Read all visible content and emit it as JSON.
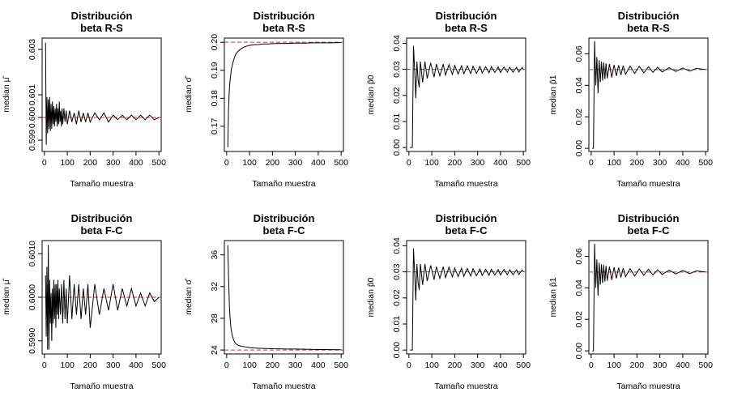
{
  "figure": {
    "background": "#ffffff",
    "line_color": "#000000",
    "reference_color": "#cc3333"
  },
  "chart_data": [
    {
      "type": "line",
      "title_line1": "Distribución",
      "title_line2": "beta R-S",
      "xlabel": "Tamaño muestra",
      "ylabel": "median μ̂",
      "xlim": [
        -10,
        510
      ],
      "ylim": [
        0.5985,
        0.6035
      ],
      "xticks": [
        0,
        100,
        200,
        300,
        400,
        500
      ],
      "xtick_labels": [
        "0",
        "100",
        "200",
        "300",
        "400",
        "500"
      ],
      "yticks": [
        0.599,
        0.6,
        0.601,
        0.603
      ],
      "ytick_labels": [
        "0.599",
        "0.600",
        "0.601",
        "0.603"
      ],
      "reference_line": 0.6,
      "x": [
        5,
        8,
        11,
        14,
        17,
        20,
        23,
        26,
        29,
        32,
        35,
        38,
        41,
        44,
        47,
        50,
        53,
        56,
        59,
        62,
        65,
        68,
        71,
        74,
        77,
        80,
        85,
        90,
        95,
        100,
        110,
        120,
        130,
        140,
        150,
        160,
        170,
        180,
        190,
        200,
        220,
        240,
        260,
        280,
        300,
        320,
        340,
        360,
        380,
        400,
        420,
        440,
        460,
        480,
        500
      ],
      "values": [
        0.6033,
        0.5988,
        0.6009,
        0.5993,
        0.6008,
        0.5995,
        0.6009,
        0.5994,
        0.6006,
        0.5995,
        0.6007,
        0.5997,
        0.6005,
        0.5996,
        0.6004,
        0.5998,
        0.6006,
        0.5996,
        0.6004,
        0.5997,
        0.6007,
        0.5998,
        0.6003,
        0.5996,
        0.6004,
        0.5997,
        0.6004,
        0.5998,
        0.6003,
        0.5997,
        0.6003,
        0.5998,
        0.6002,
        0.5997,
        0.6003,
        0.5998,
        0.6002,
        0.5998,
        0.6002,
        0.5998,
        0.6002,
        0.5999,
        0.6002,
        0.5998,
        0.6001,
        0.5999,
        0.6001,
        0.5999,
        0.6001,
        0.5999,
        0.6001,
        0.5999,
        0.6001,
        0.5999,
        0.6
      ]
    },
    {
      "type": "line",
      "title_line1": "Distribución",
      "title_line2": "beta R-S",
      "xlabel": "Tamaño muestra",
      "ylabel": "median σ̂",
      "xlim": [
        -10,
        510
      ],
      "ylim": [
        0.161,
        0.2015
      ],
      "xticks": [
        0,
        100,
        200,
        300,
        400,
        500
      ],
      "xtick_labels": [
        "0",
        "100",
        "200",
        "300",
        "400",
        "500"
      ],
      "yticks": [
        0.17,
        0.18,
        0.19,
        0.2
      ],
      "ytick_labels": [
        "0.17",
        "0.18",
        "0.19",
        "0.20"
      ],
      "reference_line": 0.2,
      "x": [
        5,
        8,
        10,
        12,
        15,
        18,
        20,
        25,
        30,
        35,
        40,
        45,
        50,
        60,
        70,
        80,
        90,
        100,
        120,
        140,
        160,
        180,
        200,
        230,
        260,
        300,
        340,
        380,
        420,
        460,
        500
      ],
      "values": [
        0.1625,
        0.1755,
        0.18,
        0.1835,
        0.1865,
        0.1885,
        0.19,
        0.192,
        0.1935,
        0.1948,
        0.1958,
        0.1963,
        0.1968,
        0.1975,
        0.198,
        0.1984,
        0.1987,
        0.1989,
        0.1991,
        0.1992,
        0.1994,
        0.1994,
        0.1995,
        0.1996,
        0.1996,
        0.1997,
        0.1997,
        0.1998,
        0.1998,
        0.1998,
        0.1999
      ]
    },
    {
      "type": "line",
      "title_line1": "Distribución",
      "title_line2": "beta R-S",
      "xlabel": "Tamaño muestra",
      "ylabel": "median p̂0",
      "xlim": [
        -10,
        510
      ],
      "ylim": [
        -0.0015,
        0.042
      ],
      "xticks": [
        0,
        100,
        200,
        300,
        400,
        500
      ],
      "xtick_labels": [
        "0",
        "100",
        "200",
        "300",
        "400",
        "500"
      ],
      "yticks": [
        0.0,
        0.01,
        0.02,
        0.03,
        0.04
      ],
      "ytick_labels": [
        "0.00",
        "0.01",
        "0.02",
        "0.03",
        "0.04"
      ],
      "reference_line": 0.03,
      "x": [
        5,
        15,
        20,
        25,
        30,
        35,
        40,
        45,
        50,
        60,
        70,
        80,
        95,
        110,
        120,
        135,
        150,
        160,
        175,
        190,
        200,
        215,
        230,
        240,
        255,
        270,
        280,
        295,
        310,
        320,
        335,
        350,
        360,
        375,
        390,
        400,
        415,
        430,
        440,
        455,
        470,
        480,
        495,
        500
      ],
      "values": [
        0.0,
        0.0,
        0.039,
        0.03,
        0.019,
        0.033,
        0.026,
        0.023,
        0.033,
        0.025,
        0.033,
        0.0265,
        0.0325,
        0.027,
        0.032,
        0.0275,
        0.032,
        0.0278,
        0.0318,
        0.028,
        0.0315,
        0.0282,
        0.0314,
        0.0283,
        0.0313,
        0.0284,
        0.0312,
        0.0285,
        0.0311,
        0.0286,
        0.031,
        0.0287,
        0.031,
        0.0288,
        0.0309,
        0.0288,
        0.0309,
        0.0289,
        0.0308,
        0.0289,
        0.0308,
        0.029,
        0.0307,
        0.03
      ]
    },
    {
      "type": "line",
      "title_line1": "Distribución",
      "title_line2": "beta R-S",
      "xlabel": "Tamaño muestra",
      "ylabel": "median p̂1",
      "xlim": [
        -10,
        510
      ],
      "ylim": [
        -0.002,
        0.07
      ],
      "xticks": [
        0,
        100,
        200,
        300,
        400,
        500
      ],
      "xtick_labels": [
        "0",
        "100",
        "200",
        "300",
        "400",
        "500"
      ],
      "yticks": [
        0.0,
        0.02,
        0.04,
        0.06
      ],
      "ytick_labels": [
        "0.00",
        "0.02",
        "0.04",
        "0.06"
      ],
      "reference_line": 0.05,
      "x": [
        5,
        10,
        15,
        20,
        25,
        30,
        35,
        40,
        45,
        50,
        55,
        60,
        65,
        70,
        80,
        90,
        100,
        110,
        120,
        130,
        140,
        150,
        170,
        190,
        210,
        230,
        250,
        270,
        290,
        310,
        340,
        370,
        400,
        430,
        460,
        500
      ],
      "values": [
        0.0,
        0.0,
        0.068,
        0.04,
        0.058,
        0.035,
        0.056,
        0.042,
        0.055,
        0.043,
        0.0545,
        0.044,
        0.054,
        0.0445,
        0.0535,
        0.045,
        0.053,
        0.046,
        0.0528,
        0.0465,
        0.0525,
        0.047,
        0.0522,
        0.0475,
        0.052,
        0.048,
        0.0518,
        0.0482,
        0.0515,
        0.0485,
        0.0512,
        0.0488,
        0.051,
        0.049,
        0.0508,
        0.05
      ]
    },
    {
      "type": "line",
      "title_line1": "Distribución",
      "title_line2": "beta F-C",
      "xlabel": "Tamaño muestra",
      "ylabel": "median μ̂",
      "xlim": [
        -10,
        510
      ],
      "ylim": [
        0.5987,
        0.6013
      ],
      "xticks": [
        0,
        100,
        200,
        300,
        400,
        500
      ],
      "xtick_labels": [
        "0",
        "100",
        "200",
        "300",
        "400",
        "500"
      ],
      "yticks": [
        0.599,
        0.6,
        0.601
      ],
      "ytick_labels": [
        "0.5990",
        "0.6000",
        "0.6010"
      ],
      "reference_line": 0.6,
      "x": [
        5,
        8,
        11,
        14,
        17,
        20,
        23,
        26,
        29,
        32,
        35,
        38,
        41,
        44,
        47,
        50,
        53,
        56,
        59,
        62,
        65,
        70,
        75,
        80,
        85,
        90,
        95,
        100,
        110,
        120,
        130,
        140,
        150,
        160,
        170,
        180,
        190,
        200,
        220,
        240,
        260,
        280,
        300,
        320,
        340,
        360,
        380,
        400,
        420,
        440,
        460,
        480,
        500
      ],
      "values": [
        0.6005,
        0.5991,
        0.6007,
        0.5988,
        0.6012,
        0.5988,
        0.6004,
        0.5994,
        0.6001,
        0.599,
        0.6002,
        0.5994,
        0.6004,
        0.5995,
        0.6003,
        0.5993,
        0.6003,
        0.5996,
        0.6004,
        0.5995,
        0.6002,
        0.5996,
        0.6003,
        0.5994,
        0.6004,
        0.5995,
        0.6002,
        0.5994,
        0.6005,
        0.5995,
        0.6003,
        0.5996,
        0.6003,
        0.5995,
        0.6002,
        0.5996,
        0.6003,
        0.5993,
        0.6003,
        0.5996,
        0.6002,
        0.5997,
        0.6003,
        0.5997,
        0.6002,
        0.5998,
        0.6002,
        0.5998,
        0.6001,
        0.5998,
        0.6001,
        0.5999,
        0.6
      ]
    },
    {
      "type": "line",
      "title_line1": "Distribución",
      "title_line2": "beta F-C",
      "xlabel": "Tamaño muestra",
      "ylabel": "median σ̂",
      "xlim": [
        -10,
        510
      ],
      "ylim": [
        23.5,
        37.8
      ],
      "xticks": [
        0,
        100,
        200,
        300,
        400,
        500
      ],
      "xtick_labels": [
        "0",
        "100",
        "200",
        "300",
        "400",
        "500"
      ],
      "yticks": [
        24,
        28,
        32,
        36
      ],
      "ytick_labels": [
        "24",
        "28",
        "32",
        "36"
      ],
      "reference_line": 24,
      "x": [
        5,
        8,
        10,
        12,
        15,
        18,
        20,
        25,
        30,
        35,
        40,
        45,
        50,
        60,
        70,
        80,
        90,
        100,
        120,
        140,
        160,
        180,
        200,
        230,
        260,
        300,
        340,
        380,
        420,
        460,
        500
      ],
      "values": [
        37.2,
        33.5,
        31.5,
        29.5,
        28.0,
        27.0,
        26.5,
        25.8,
        25.3,
        25.0,
        24.8,
        24.7,
        24.6,
        24.5,
        24.45,
        24.4,
        24.35,
        24.3,
        24.25,
        24.22,
        24.2,
        24.18,
        24.16,
        24.15,
        24.13,
        24.12,
        24.1,
        24.08,
        24.06,
        24.05,
        24.04
      ]
    },
    {
      "type": "line",
      "title_line1": "Distribución",
      "title_line2": "beta F-C",
      "xlabel": "Tamaño muestra",
      "ylabel": "median p̂0",
      "xlim": [
        -10,
        510
      ],
      "ylim": [
        -0.0015,
        0.042
      ],
      "xticks": [
        0,
        100,
        200,
        300,
        400,
        500
      ],
      "xtick_labels": [
        "0",
        "100",
        "200",
        "300",
        "400",
        "500"
      ],
      "yticks": [
        0.0,
        0.01,
        0.02,
        0.03,
        0.04
      ],
      "ytick_labels": [
        "0.00",
        "0.01",
        "0.02",
        "0.03",
        "0.04"
      ],
      "reference_line": 0.03,
      "x": [
        5,
        15,
        20,
        25,
        30,
        35,
        40,
        45,
        50,
        60,
        70,
        80,
        95,
        110,
        120,
        135,
        150,
        160,
        175,
        190,
        200,
        215,
        230,
        240,
        255,
        270,
        280,
        295,
        310,
        320,
        335,
        350,
        360,
        375,
        390,
        400,
        415,
        430,
        440,
        455,
        470,
        480,
        495,
        500
      ],
      "values": [
        0.0,
        0.0,
        0.039,
        0.03,
        0.019,
        0.033,
        0.026,
        0.023,
        0.033,
        0.025,
        0.033,
        0.0265,
        0.0325,
        0.027,
        0.032,
        0.0275,
        0.032,
        0.0278,
        0.0318,
        0.028,
        0.0315,
        0.0282,
        0.0314,
        0.0283,
        0.0313,
        0.0284,
        0.0312,
        0.0285,
        0.0311,
        0.0286,
        0.031,
        0.0287,
        0.031,
        0.0288,
        0.0309,
        0.0288,
        0.0309,
        0.0289,
        0.0308,
        0.0289,
        0.0308,
        0.029,
        0.0307,
        0.03
      ]
    },
    {
      "type": "line",
      "title_line1": "Distribución",
      "title_line2": "beta F-C",
      "xlabel": "Tamaño muestra",
      "ylabel": "median p̂1",
      "xlim": [
        -10,
        510
      ],
      "ylim": [
        -0.002,
        0.07
      ],
      "xticks": [
        0,
        100,
        200,
        300,
        400,
        500
      ],
      "xtick_labels": [
        "0",
        "100",
        "200",
        "300",
        "400",
        "500"
      ],
      "yticks": [
        0.0,
        0.02,
        0.04,
        0.06
      ],
      "ytick_labels": [
        "0.00",
        "0.02",
        "0.04",
        "0.06"
      ],
      "reference_line": 0.05,
      "x": [
        5,
        10,
        15,
        20,
        25,
        30,
        35,
        40,
        45,
        50,
        55,
        60,
        65,
        70,
        80,
        90,
        100,
        110,
        120,
        130,
        140,
        150,
        170,
        190,
        210,
        230,
        250,
        270,
        290,
        310,
        340,
        370,
        400,
        430,
        460,
        500
      ],
      "values": [
        0.0,
        0.0,
        0.068,
        0.04,
        0.058,
        0.035,
        0.056,
        0.042,
        0.055,
        0.043,
        0.0545,
        0.044,
        0.054,
        0.0445,
        0.0535,
        0.045,
        0.053,
        0.046,
        0.0528,
        0.0465,
        0.0525,
        0.047,
        0.0522,
        0.0475,
        0.052,
        0.048,
        0.0518,
        0.0482,
        0.0515,
        0.0485,
        0.0512,
        0.0488,
        0.051,
        0.049,
        0.0508,
        0.05
      ]
    }
  ]
}
